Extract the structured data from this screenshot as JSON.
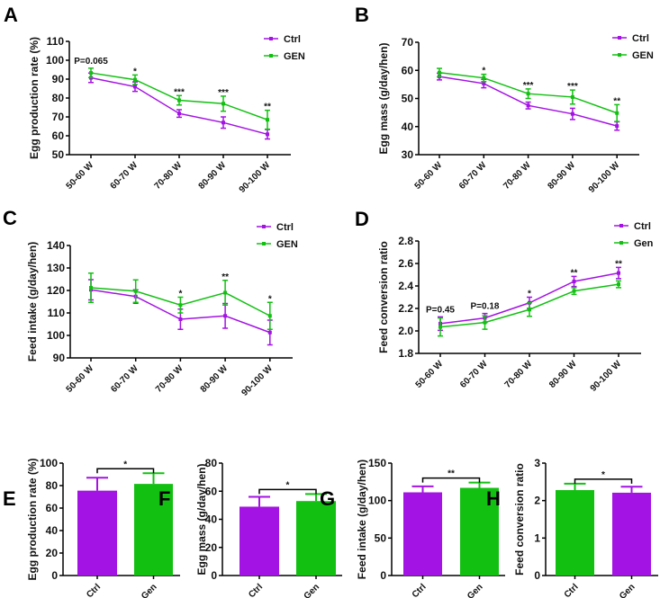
{
  "colors": {
    "purple": "#a313e3",
    "green": "#12c012"
  },
  "chart_data": [
    {
      "panel": "A",
      "type": "line",
      "ylabel": "Egg production rate (%)",
      "ylim": [
        50,
        110
      ],
      "yticks": [
        50,
        60,
        70,
        80,
        90,
        100,
        110
      ],
      "categories": [
        "50-60 W",
        "60-70 W",
        "70-80 W",
        "80-90 W",
        "90-100 W"
      ],
      "series": [
        {
          "name": "Ctrl",
          "color": "purple",
          "values": [
            90.7,
            86.0,
            71.8,
            67.0,
            60.8
          ],
          "err": [
            2.5,
            2.5,
            2.0,
            3.0,
            2.5
          ]
        },
        {
          "name": "GEN",
          "color": "green",
          "values": [
            93.3,
            89.7,
            78.8,
            77.0,
            68.5
          ],
          "err": [
            2.5,
            2.5,
            2.5,
            4.0,
            5.0
          ]
        }
      ],
      "annotations": [
        "P=0.065",
        "*",
        "***",
        "***",
        "**"
      ]
    },
    {
      "panel": "B",
      "type": "line",
      "ylabel": "Egg mass  (g/day/hen)",
      "ylim": [
        30,
        70
      ],
      "yticks": [
        30,
        40,
        50,
        60,
        70
      ],
      "categories": [
        "50-60 W",
        "60-70 W",
        "70-80 W",
        "80-90 W",
        "90-100 W"
      ],
      "series": [
        {
          "name": "Ctrl",
          "color": "purple",
          "values": [
            57.8,
            55.3,
            47.5,
            44.5,
            40.2
          ],
          "err": [
            1.2,
            1.5,
            1.2,
            2.0,
            1.5
          ]
        },
        {
          "name": "GEN",
          "color": "green",
          "values": [
            59.2,
            57.3,
            51.7,
            50.5,
            44.8
          ],
          "err": [
            1.5,
            1.3,
            1.7,
            2.5,
            3.0
          ]
        }
      ],
      "annotations": [
        "",
        "*",
        "***",
        "***",
        "**"
      ]
    },
    {
      "panel": "C",
      "type": "line",
      "ylabel": "Feed intake  (g/day/hen)",
      "ylim": [
        90,
        140
      ],
      "yticks": [
        90,
        100,
        110,
        120,
        130,
        140
      ],
      "categories": [
        "50-60 W",
        "60-70 W",
        "70-80 W",
        "80-90 W",
        "90-100 W"
      ],
      "series": [
        {
          "name": "Ctrl",
          "color": "purple",
          "values": [
            120.3,
            117.3,
            107.2,
            108.7,
            101.3
          ],
          "err": [
            4.5,
            3.0,
            4.5,
            5.5,
            5.5
          ]
        },
        {
          "name": "GEN",
          "color": "green",
          "values": [
            121.2,
            119.7,
            113.5,
            119.0,
            108.7
          ],
          "err": [
            6.5,
            5.0,
            3.5,
            5.5,
            6.0
          ]
        }
      ],
      "annotations": [
        "",
        "",
        "*",
        "**",
        "*"
      ]
    },
    {
      "panel": "D",
      "type": "line",
      "ylabel": "Feed conversion ratio",
      "ylim": [
        1.8,
        2.8
      ],
      "yticks": [
        1.8,
        2.0,
        2.2,
        2.4,
        2.6,
        2.8
      ],
      "categories": [
        "50-60 W",
        "60-70 W",
        "70-80 W",
        "80-90 W",
        "90-100 W"
      ],
      "series": [
        {
          "name": "Ctrl",
          "color": "purple",
          "values": [
            2.065,
            2.115,
            2.25,
            2.44,
            2.515
          ],
          "err": [
            0.06,
            0.04,
            0.05,
            0.045,
            0.05
          ]
        },
        {
          "name": "Gen",
          "color": "green",
          "values": [
            2.035,
            2.075,
            2.19,
            2.355,
            2.415
          ],
          "err": [
            0.08,
            0.06,
            0.06,
            0.03,
            0.03
          ]
        }
      ],
      "annotations": [
        "P=0.45",
        "P=0.18",
        "*",
        "**",
        "**"
      ]
    },
    {
      "panel": "E",
      "type": "bar",
      "ylabel": "Egg production rate (%)",
      "ylim": [
        0,
        100
      ],
      "yticks": [
        0,
        20,
        40,
        60,
        80,
        100
      ],
      "categories": [
        "Ctrl",
        "Gen"
      ],
      "values": [
        75.5,
        81.5
      ],
      "err": [
        11.5,
        9.5
      ],
      "colors": [
        "purple",
        "green"
      ],
      "significance": "*"
    },
    {
      "panel": "F",
      "type": "bar",
      "ylabel": "Egg mass  (g/day/hen)",
      "ylim": [
        0,
        80
      ],
      "yticks": [
        0,
        20,
        40,
        60,
        80
      ],
      "categories": [
        "Ctrl",
        "Gen"
      ],
      "values": [
        49,
        53
      ],
      "err": [
        7,
        5
      ],
      "colors": [
        "purple",
        "green"
      ],
      "significance": "*"
    },
    {
      "panel": "G",
      "type": "bar",
      "ylabel": "Feed intake  (g/day/hen)",
      "ylim": [
        0,
        150
      ],
      "yticks": [
        0,
        50,
        100,
        150
      ],
      "categories": [
        "Ctrl",
        "Gen"
      ],
      "values": [
        111,
        117
      ],
      "err": [
        8,
        7
      ],
      "colors": [
        "purple",
        "green"
      ],
      "significance": "**"
    },
    {
      "panel": "H",
      "type": "bar",
      "ylabel": "Feed conversion ratio",
      "ylim": [
        0,
        3
      ],
      "yticks": [
        0,
        1,
        2,
        3
      ],
      "categories": [
        "Ctrl",
        "Gen"
      ],
      "values": [
        2.28,
        2.21
      ],
      "err": [
        0.17,
        0.16
      ],
      "colors": [
        "green",
        "purple"
      ],
      "significance": "*"
    }
  ]
}
